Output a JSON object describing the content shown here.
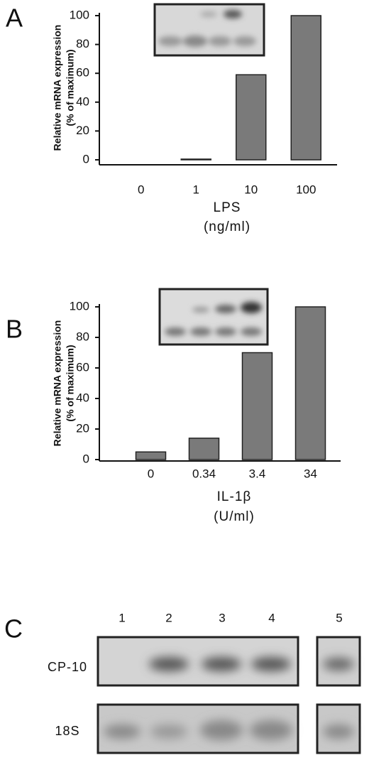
{
  "chart_data": [
    {
      "type": "bar",
      "panel_label": "A",
      "ylabel_lines": [
        "Relative mRNA expression",
        "(% of maximum)"
      ],
      "xlabel_lines": [
        "LPS",
        "(ng/ml)"
      ],
      "categories": [
        "0",
        "1",
        "10",
        "100"
      ],
      "values": [
        0,
        0.5,
        59,
        100
      ],
      "color": "#7a7a7a",
      "ylim": [
        0,
        100
      ],
      "yticks": [
        0,
        20,
        40,
        60,
        80,
        100
      ]
    },
    {
      "type": "bar",
      "panel_label": "B",
      "ylabel_lines": [
        "Relative mRNA expression",
        "(% of maximum)"
      ],
      "xlabel_lines": [
        "IL-1β",
        "(U/ml)"
      ],
      "categories": [
        "0",
        "0.34",
        "3.4",
        "34"
      ],
      "values": [
        5,
        14,
        70,
        100
      ],
      "color": "#7a7a7a",
      "ylim": [
        0,
        100
      ],
      "yticks": [
        0,
        20,
        40,
        60,
        80,
        100
      ]
    }
  ],
  "blot": {
    "panel_label": "C",
    "lanes": [
      "1",
      "2",
      "3",
      "4",
      "5"
    ],
    "rows": [
      "CP-10",
      "18S"
    ]
  }
}
